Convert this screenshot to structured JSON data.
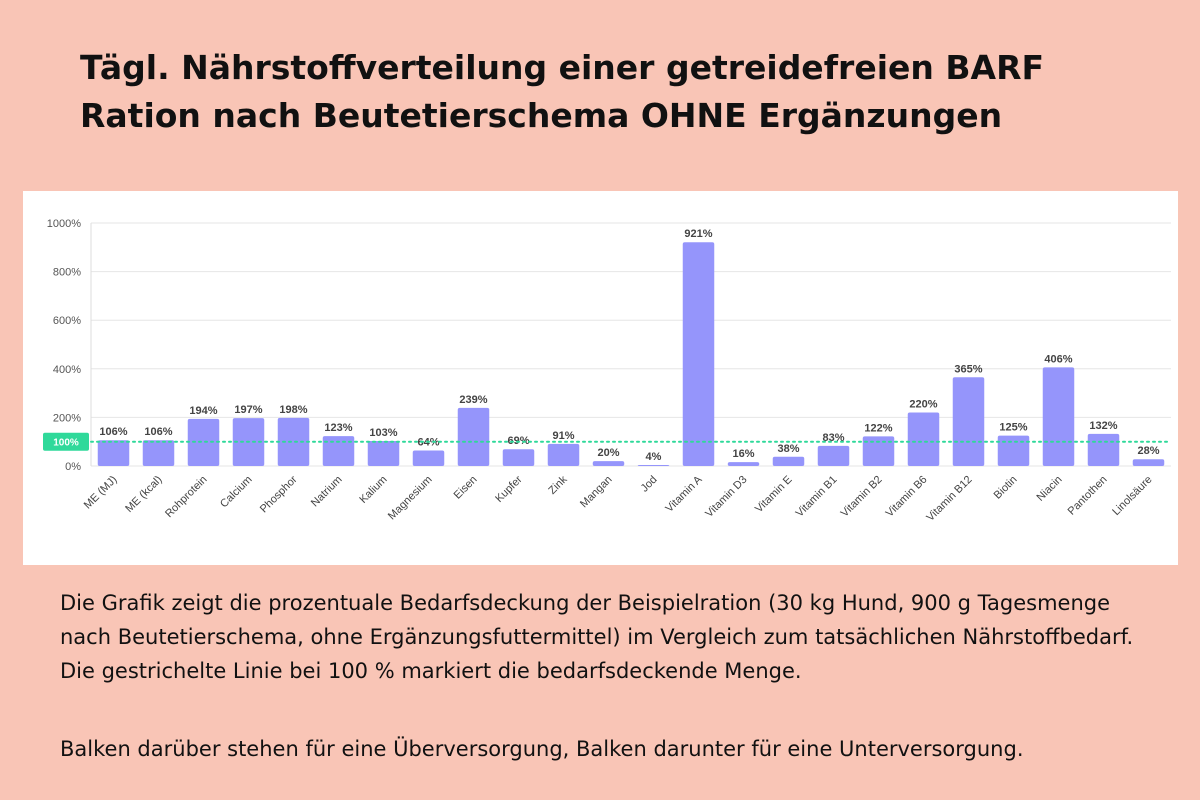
{
  "header": {
    "title": "Tägl. Nährstoffverteilung einer getreidefreien BARF Ration nach Beutetierschema OHNE Ergänzungen"
  },
  "description": {
    "paragraph1": "Die Grafik zeigt die prozentuale Bedarfsdeckung der Beispielration (30 kg Hund, 900 g Tagesmenge nach Beutetierschema, ohne Ergänzungsfuttermittel) im Vergleich zum tatsächlichen Nährstoffbedarf. Die gestrichelte Linie bei 100 % markiert die bedarfsdeckende Menge.",
    "paragraph2": "Balken darüber stehen für eine Überversorgung, Balken darunter für eine Unterversorgung."
  },
  "colors": {
    "background": "#f9c5b6",
    "bar": "#9595fb",
    "reference_line": "#2fd99a",
    "reference_badge": "#2fd99a",
    "grid": "#e6e6e6"
  },
  "chart_data": {
    "type": "bar",
    "categories": [
      "ME (MJ)",
      "ME (kcal)",
      "Rohprotein",
      "Calcium",
      "Phosphor",
      "Natrium",
      "Kalium",
      "Magnesium",
      "Eisen",
      "Kupfer",
      "Zink",
      "Mangan",
      "Jod",
      "Vitamin A",
      "Vitamin D3",
      "Vitamin E",
      "Vitamin B1",
      "Vitamin B2",
      "Vitamin B6",
      "Vitamin B12",
      "Biotin",
      "Niacin",
      "Pantothen",
      "Linolsäure"
    ],
    "values": [
      106,
      106,
      194,
      197,
      198,
      123,
      103,
      64,
      239,
      69,
      91,
      20,
      4,
      921,
      16,
      38,
      83,
      122,
      220,
      365,
      125,
      406,
      132,
      28
    ],
    "data_labels": [
      "106%",
      "106%",
      "194%",
      "197%",
      "198%",
      "123%",
      "103%",
      "64%",
      "239%",
      "69%",
      "91%",
      "20%",
      "4%",
      "921%",
      "16%",
      "38%",
      "83%",
      "122%",
      "220%",
      "365%",
      "125%",
      "406%",
      "132%",
      "28%"
    ],
    "ylim": [
      0,
      1000
    ],
    "yticks": [
      0,
      200,
      400,
      600,
      800,
      1000
    ],
    "ytick_labels": [
      "0%",
      "200%",
      "400%",
      "600%",
      "800%",
      "1000%"
    ],
    "reference_line": {
      "value": 100,
      "label": "100%",
      "style": "dotted"
    },
    "grid": true,
    "legend": "none"
  }
}
